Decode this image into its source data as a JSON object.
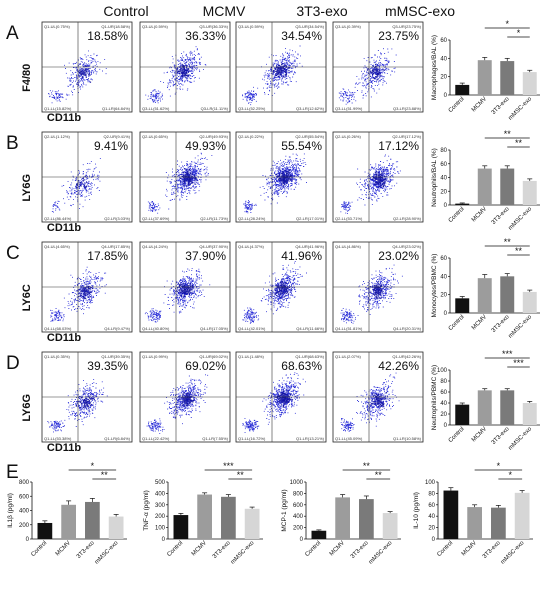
{
  "columns": [
    "Control",
    "MCMV",
    "3T3-exo",
    "mMSC-exo"
  ],
  "rows": [
    {
      "letter": "A",
      "ylabel": "F4/80",
      "xlabel": "CD11b",
      "percents": [
        "18.58%",
        "36.33%",
        "34.54%",
        "23.75%"
      ],
      "quad_ul": [
        "Q1-UL(0.75%)",
        "Q3-UL(0.59%)",
        "Q3-UL(0.59%)",
        "Q3-UL(0.39%)"
      ],
      "quad_ur": [
        "Q1-UR(18.58%)",
        "Q3-UR(36.33%)",
        "Q3-UR(34.54%)",
        "Q3-UR(23.75%)"
      ],
      "quad_ll": [
        "Q1-LL(15.82%)",
        "Q3-LL(51.62%)",
        "Q3-LL(52.25%)",
        "Q3-LL(51.99%)"
      ],
      "quad_lr": [
        "Q1-LR(64.84%)",
        "Q3-LR(11.11%)",
        "Q3-LR(12.62%)",
        "Q3-LR(23.88%)"
      ],
      "density": [
        0.3,
        0.55,
        0.6,
        0.4
      ]
    },
    {
      "letter": "B",
      "ylabel": "LY6G",
      "xlabel": "CD11b",
      "percents": [
        "9.41%",
        "49.93%",
        "55.54%",
        "17.12%"
      ],
      "quad_ul": [
        "Q2-UL(1.12%)",
        "Q2-UL(0.65%)",
        "Q2-UL(0.22%)",
        "Q2-UL(0.26%)"
      ],
      "quad_ur": [
        "Q2-UR(9.41%)",
        "Q2-UR(49.93%)",
        "Q2-UR(55.54%)",
        "Q2-UR(17.12%)"
      ],
      "quad_ll": [
        "Q2-LL(86.44%)",
        "Q2-LL(37.69%)",
        "Q2-LL(28.24%)",
        "Q2-LL(53.71%)"
      ],
      "quad_lr": [
        "Q2-LR(3.03%)",
        "Q2-LR(11.73%)",
        "Q2-LR(17.01%)",
        "Q2-LR(28.90%)"
      ],
      "density": [
        0.15,
        0.85,
        0.95,
        0.75
      ]
    },
    {
      "letter": "C",
      "ylabel": "LY6C",
      "xlabel": "CD11b",
      "percents": [
        "17.85%",
        "37.90%",
        "41.96%",
        "23.02%"
      ],
      "quad_ul": [
        "Q4-UL(4.65%)",
        "Q4-UL(4.24%)",
        "Q4-UL(4.37%)",
        "Q4-UL(4.86%)"
      ],
      "quad_ur": [
        "Q4-UR(17.85%)",
        "Q4-UR(37.90%)",
        "Q4-UR(41.96%)",
        "Q4-UR(23.02%)"
      ],
      "quad_ll": [
        "Q4-LL(68.03%)",
        "Q4-LL(40.80%)",
        "Q4-LL(42.01%)",
        "Q4-LL(51.81%)"
      ],
      "quad_lr": [
        "Q4-LR(9.47%)",
        "Q4-LR(17.05%)",
        "Q4-LR(11.66%)",
        "Q4-LR(20.31%)"
      ],
      "density": [
        0.45,
        0.7,
        0.75,
        0.6
      ]
    },
    {
      "letter": "D",
      "ylabel": "LY6G",
      "xlabel": "CD11b",
      "percents": [
        "39.35%",
        "69.02%",
        "68.63%",
        "42.26%"
      ],
      "quad_ul": [
        "Q1-UL(0.35%)",
        "Q1-UL(0.99%)",
        "Q1-UL(1.48%)",
        "Q1-UL(2.07%)"
      ],
      "quad_ur": [
        "Q1-UR(39.35%)",
        "Q1-UR(69.02%)",
        "Q1-UR(68.63%)",
        "Q1-UR(42.26%)"
      ],
      "quad_ll": [
        "Q1-LL(53.38%)",
        "Q1-LL(22.42%)",
        "Q1-LL(16.72%)",
        "Q1-LL(45.09%)"
      ],
      "quad_lr": [
        "Q1-LR(6.84%)",
        "Q1-LR(7.55%)",
        "Q1-LR(13.21%)",
        "Q1-LR(10.58%)"
      ],
      "density": [
        0.45,
        0.75,
        0.9,
        0.6
      ]
    }
  ],
  "panel_e_label": "E",
  "colors": {
    "control": "#111111",
    "mcmv": "#9c9c9c",
    "exo3t3": "#7a7a7a",
    "mmsc": "#d6d6d6",
    "dot": "#2b2fd8",
    "dense": "#0a0a9a"
  },
  "chart_data": [
    {
      "type": "bar",
      "panel": "A",
      "categories": [
        "Control",
        "MCMV",
        "3T3-exo",
        "mMSC-exo"
      ],
      "values": [
        11,
        38,
        37,
        25
      ],
      "errors": [
        2,
        3,
        3,
        2
      ],
      "ylabel": "Macrophages/BAL (%)",
      "ylim": [
        0,
        60
      ],
      "yticks": [
        "0",
        "20",
        "40",
        "60"
      ],
      "significance": [
        {
          "from": 1,
          "to": 3,
          "label": "*"
        },
        {
          "from": 2,
          "to": 3,
          "label": "*"
        }
      ]
    },
    {
      "type": "bar",
      "panel": "B",
      "categories": [
        "Control",
        "MCMV",
        "3T3-exo",
        "mMSC-exo"
      ],
      "values": [
        2,
        53,
        53,
        35
      ],
      "errors": [
        1,
        4,
        4,
        3
      ],
      "ylabel": "Neutrophils/BAL (%)",
      "ylim": [
        0,
        80
      ],
      "yticks": [
        "0",
        "20",
        "40",
        "60",
        "80"
      ],
      "significance": [
        {
          "from": 1,
          "to": 3,
          "label": "**"
        },
        {
          "from": 2,
          "to": 3,
          "label": "**"
        }
      ]
    },
    {
      "type": "bar",
      "panel": "C",
      "categories": [
        "Control",
        "MCMV",
        "3T3-exo",
        "mMSC-exo"
      ],
      "values": [
        16,
        38,
        40,
        23
      ],
      "errors": [
        2,
        4,
        3,
        2
      ],
      "ylabel": "Monocytes/PBMC (%)",
      "ylim": [
        0,
        60
      ],
      "yticks": [
        "0",
        "20",
        "40",
        "60"
      ],
      "significance": [
        {
          "from": 1,
          "to": 3,
          "label": "**"
        },
        {
          "from": 2,
          "to": 3,
          "label": "**"
        }
      ]
    },
    {
      "type": "bar",
      "panel": "D",
      "categories": [
        "Control",
        "MCMV",
        "3T3-exo",
        "mMSC-exo"
      ],
      "values": [
        37,
        63,
        63,
        40
      ],
      "errors": [
        3,
        3,
        3,
        3
      ],
      "ylabel": "Neutrophils/PBMC (%)",
      "ylim": [
        0,
        100
      ],
      "yticks": [
        "0",
        "20",
        "40",
        "60",
        "80",
        "100"
      ],
      "significance": [
        {
          "from": 1,
          "to": 3,
          "label": "***"
        },
        {
          "from": 2,
          "to": 3,
          "label": "***"
        }
      ]
    },
    {
      "type": "bar",
      "panel": "E1",
      "categories": [
        "Control",
        "MCMV",
        "3T3-exo",
        "mMSC-exo"
      ],
      "values": [
        225,
        480,
        520,
        315
      ],
      "errors": [
        30,
        55,
        50,
        30
      ],
      "ylabel": "IL1β (pg/ml)",
      "ylim": [
        0,
        800
      ],
      "yticks": [
        "0",
        "200",
        "400",
        "600",
        "800"
      ],
      "significance": [
        {
          "from": 1,
          "to": 3,
          "label": "*"
        },
        {
          "from": 2,
          "to": 3,
          "label": "**"
        }
      ]
    },
    {
      "type": "bar",
      "panel": "E2",
      "categories": [
        "Control",
        "MCMV",
        "3T3-exo",
        "mMSC-exo"
      ],
      "values": [
        210,
        390,
        370,
        265
      ],
      "errors": [
        15,
        15,
        20,
        15
      ],
      "ylabel": "TNF-α (pg/ml)",
      "ylim": [
        0,
        500
      ],
      "yticks": [
        "0",
        "100",
        "200",
        "300",
        "400",
        "500"
      ],
      "significance": [
        {
          "from": 1,
          "to": 3,
          "label": "***"
        },
        {
          "from": 2,
          "to": 3,
          "label": "**"
        }
      ]
    },
    {
      "type": "bar",
      "panel": "E3",
      "categories": [
        "Control",
        "MCMV",
        "3T3-exo",
        "mMSC-exo"
      ],
      "values": [
        145,
        730,
        700,
        455
      ],
      "errors": [
        15,
        50,
        55,
        25
      ],
      "ylabel": "MCP-1 (pg/ml)",
      "ylim": [
        0,
        1000
      ],
      "yticks": [
        "0",
        "200",
        "400",
        "600",
        "800",
        "1000"
      ],
      "significance": [
        {
          "from": 1,
          "to": 3,
          "label": "**"
        },
        {
          "from": 2,
          "to": 3,
          "label": "**"
        }
      ]
    },
    {
      "type": "bar",
      "panel": "E4",
      "categories": [
        "Control",
        "MCMV",
        "3T3-exo",
        "mMSC-exo"
      ],
      "values": [
        85,
        56,
        55,
        81
      ],
      "errors": [
        5,
        4,
        4,
        4
      ],
      "ylabel": "IL-10 (pg/ml)",
      "ylim": [
        0,
        100
      ],
      "yticks": [
        "0",
        "20",
        "40",
        "60",
        "80",
        "100"
      ],
      "significance": [
        {
          "from": 1,
          "to": 3,
          "label": "*"
        },
        {
          "from": 2,
          "to": 3,
          "label": "*"
        }
      ]
    }
  ]
}
